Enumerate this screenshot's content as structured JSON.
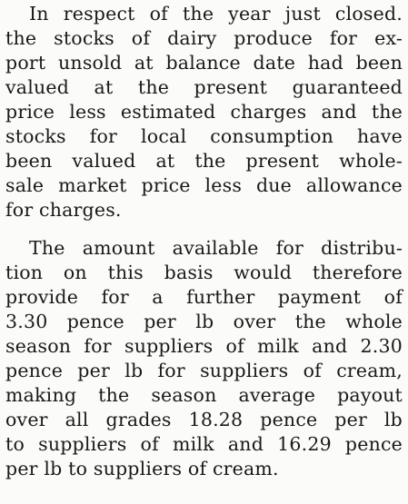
{
  "article": {
    "paragraphs": [
      {
        "lines": [
          "In respect of the year just closed.",
          "the stocks of dairy produce for ex-",
          "port unsold at balance date had been",
          "valued at the present guaranteed",
          "price less estimated charges and the",
          "stocks for local consumption have",
          "been valued at the present whole-",
          "sale market price less due allowance",
          "for charges."
        ]
      },
      {
        "lines": [
          "The amount available for distribu-",
          "tion on this basis would therefore",
          "provide for a further payment of",
          "3.30 pence per lb over the whole",
          "season for suppliers of milk and 2.30",
          "pence per lb for suppliers of cream,",
          "making the season average payout",
          "over all grades 18.28 pence per lb",
          "to suppliers of milk and 16.29 pence",
          "per lb to suppliers of cream."
        ]
      }
    ]
  }
}
